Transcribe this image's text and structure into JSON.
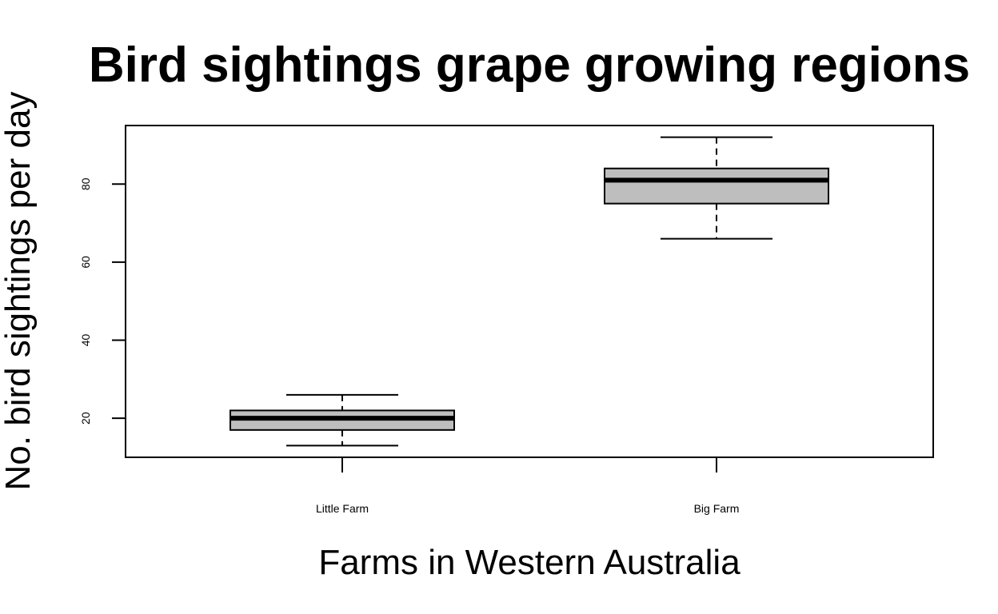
{
  "chart_data": {
    "type": "box",
    "title": "Bird sightings grape growing regions",
    "xlabel": "Farms in Western Australia",
    "ylabel": "No. bird sightings per day",
    "categories": [
      "Little Farm",
      "Big Farm"
    ],
    "boxes": [
      {
        "name": "Little Farm",
        "whisker_low": 13,
        "q1": 17,
        "median": 20,
        "q3": 22,
        "whisker_high": 26
      },
      {
        "name": "Big Farm",
        "whisker_low": 66,
        "q1": 75,
        "median": 81,
        "q3": 84,
        "whisker_high": 92
      }
    ],
    "ylim": [
      10,
      95
    ],
    "yticks": [
      20,
      40,
      60,
      80
    ],
    "grid": false,
    "box_color": "#bebebe"
  }
}
